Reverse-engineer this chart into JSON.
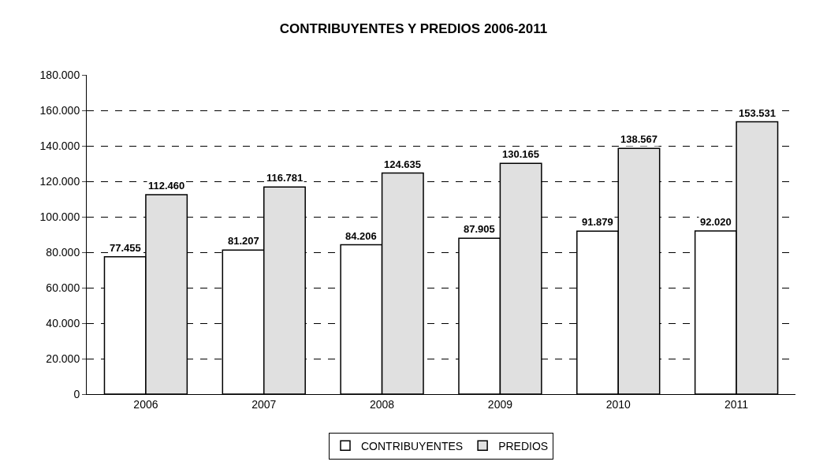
{
  "chart_data": {
    "type": "bar",
    "title": "CONTRIBUYENTES Y PREDIOS 2006-2011",
    "categories": [
      "2006",
      "2007",
      "2008",
      "2009",
      "2010",
      "2011"
    ],
    "series": [
      {
        "name": "CONTRIBUYENTES",
        "color": "#ffffff",
        "values": [
          77455,
          81207,
          84206,
          87905,
          91879,
          92020
        ],
        "value_labels": [
          "77.455",
          "81.207",
          "84.206",
          "87.905",
          "91.879",
          "92.020"
        ]
      },
      {
        "name": "PREDIOS",
        "color": "#e0e0e0",
        "values": [
          112460,
          116781,
          124635,
          130165,
          138567,
          153531
        ],
        "value_labels": [
          "112.460",
          "116.781",
          "124.635",
          "130.165",
          "138.567",
          "153.531"
        ]
      }
    ],
    "ylim": [
      0,
      180000
    ],
    "yticks": [
      0,
      {
        "value": 20000,
        "label": "20.000"
      },
      {
        "value": 40000,
        "label": "40.000"
      },
      {
        "value": 60000,
        "label": "60.000"
      },
      {
        "value": 80000,
        "label": "80.000"
      },
      {
        "value": 100000,
        "label": "100.000"
      },
      {
        "value": 120000,
        "label": "120.000"
      },
      {
        "value": 140000,
        "label": "140.000"
      },
      {
        "value": 160000,
        "label": "160.000"
      },
      {
        "value": 180000,
        "label": "180.000"
      }
    ],
    "grid": "y",
    "legend": "bottom"
  }
}
